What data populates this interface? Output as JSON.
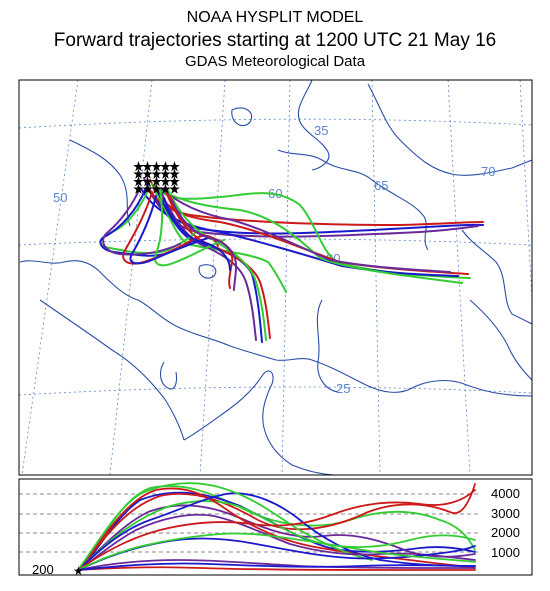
{
  "header": {
    "model": "NOAA HYSPLIT MODEL",
    "description": "Forward trajectories starting at 1200 UTC 21 May 16",
    "data_source": "GDAS Meteorological Data"
  },
  "map": {
    "lon_labels": [
      "50",
      "60",
      "65",
      "70"
    ],
    "lat_labels": [
      "35",
      "30",
      "25"
    ],
    "colors": {
      "coast": "#2c4ea8",
      "graticule": "#5b86c9",
      "traj_green": "#33cc33",
      "traj_blue": "#1a1acc",
      "traj_red": "#cc1a1a",
      "traj_purple": "#6a2a9a",
      "source": "#000000"
    }
  },
  "profile": {
    "altitude_labels": [
      "4000",
      "3000",
      "2000",
      "1000"
    ],
    "start_altitude": "200"
  }
}
